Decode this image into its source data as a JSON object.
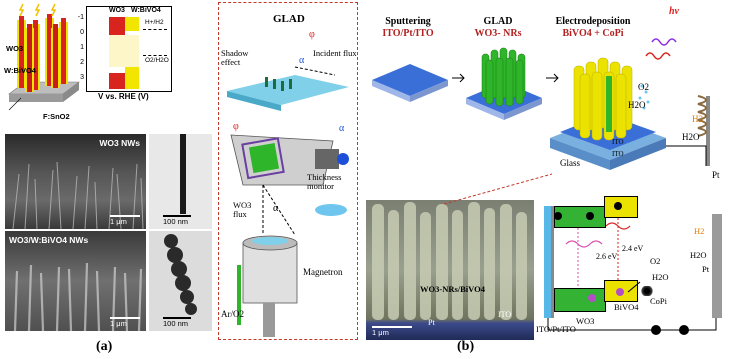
{
  "panel_a": {
    "caption": "(a)",
    "schematic": {
      "wo3_label": "WO3",
      "wbivo4_label": "W:BiVO4",
      "substrate_label": "F:SnO2",
      "band_header_wo3": "WO3",
      "band_header_bivo4": "W:BiVO4",
      "h_label": "H+/H2",
      "o_label": "O2/H2O",
      "y_ticks": [
        "-1",
        "0",
        "1",
        "2",
        "3"
      ],
      "axis_label": "V vs. RHE (V)"
    },
    "sem_top_label": "WO3 NWs",
    "sem_bottom_label": "WO3/W:BiVO4 NWs",
    "scale_1um_top": "1 μm",
    "scale_100nm_top": "100 nm",
    "scale_1um_bottom": "1 μm",
    "scale_100nm_bottom": "100 nm"
  },
  "panel_b": {
    "caption": "(b)",
    "glad_inset": {
      "title": "GLAD",
      "phi": "φ",
      "alpha": "α",
      "shadow_effect": "Shadow effect",
      "incident_flux": "Incident flux",
      "thickness_monitor": "Thickness monitor",
      "wo3_flux": "WO3 flux",
      "magnetron": "Magnetron",
      "gas": "Ar/O2"
    },
    "steps": [
      {
        "title": "Sputtering",
        "subtitle": "ITO/Pt/ITO"
      },
      {
        "title": "GLAD",
        "subtitle": "WO3- NRs"
      },
      {
        "title": "Electrodeposition",
        "subtitle": "BiVO4 + CoPi"
      }
    ],
    "device": {
      "hv": "hν",
      "o2": "O2",
      "h2o": "H2O",
      "h2": "H2",
      "h2o_right": "H2O",
      "pt": "Pt",
      "glass": "Glass",
      "ito1": "ITO",
      "ito2": "ITO",
      "pt_layer": "Pt"
    },
    "cross_section": {
      "label": "WO3-NRs/BiVO4",
      "pt": "Pt",
      "ito": "ITO",
      "scale": "1 μm"
    },
    "band_diagram": {
      "gap_wo3": "2.6 eV",
      "gap_bivo4": "2.4 eV",
      "o2": "O2",
      "h2o": "H2O",
      "copi": "CoPi",
      "bivo4": "BiVO4",
      "wo3": "WO3",
      "h2": "H2",
      "h2o_right": "H2O",
      "pt": "Pt",
      "electrode": "ITO/Pt/ITO",
      "e_minus": "e",
      "h_plus": "+",
      "minus": "−"
    }
  },
  "colors": {
    "wo3_red": "#d9231f",
    "bivo4_yellow": "#f2e600",
    "glad_green": "#2fb52a",
    "title_red": "#b22222",
    "band_green": "#33b233",
    "band_yellow": "#ece200",
    "glass_blue": "#7ab0e0"
  }
}
